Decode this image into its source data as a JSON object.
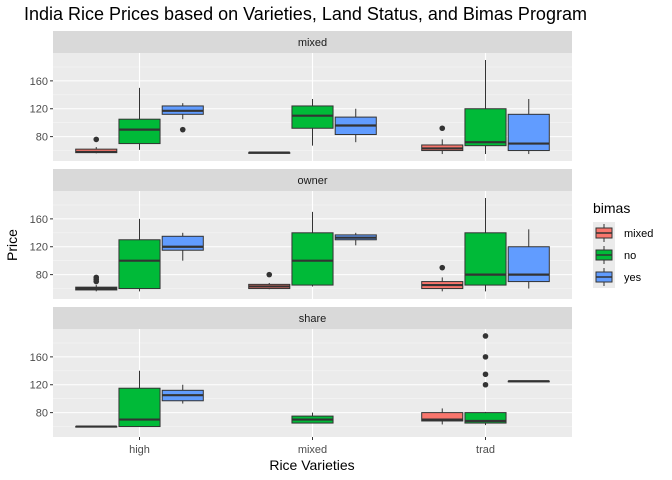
{
  "chart_data": {
    "type": "boxplot",
    "title": "India Rice Prices based on Varieties, Land Status, and Bimas Program",
    "xlabel": "Rice Varieties",
    "ylabel": "Price",
    "categories": [
      "high",
      "mixed",
      "trad"
    ],
    "ylim": [
      45,
      200
    ],
    "yticks": [
      80,
      120,
      160
    ],
    "legend": {
      "title": "bimas",
      "position": "right",
      "items": [
        {
          "name": "mixed",
          "color": "#F8766D"
        },
        {
          "name": "no",
          "color": "#00BA38"
        },
        {
          "name": "yes",
          "color": "#619CFF"
        }
      ]
    },
    "grid": true,
    "facets": [
      {
        "label": "mixed",
        "boxes": [
          {
            "category": "high",
            "group": "mixed",
            "min": 56,
            "q1": 57,
            "median": 58,
            "q3": 62,
            "max": 65,
            "outliers": [
              76
            ]
          },
          {
            "category": "high",
            "group": "no",
            "min": 61,
            "q1": 70,
            "median": 90,
            "q3": 105,
            "max": 150,
            "outliers": []
          },
          {
            "category": "high",
            "group": "yes",
            "min": 105,
            "q1": 112,
            "median": 117,
            "q3": 124,
            "max": 128,
            "outliers": [
              90
            ]
          },
          {
            "category": "mixed",
            "group": "mixed",
            "min": 56,
            "q1": 56,
            "median": 57,
            "q3": 57,
            "max": 57,
            "outliers": []
          },
          {
            "category": "mixed",
            "group": "no",
            "min": 67,
            "q1": 92,
            "median": 110,
            "q3": 124,
            "max": 134,
            "outliers": []
          },
          {
            "category": "mixed",
            "group": "yes",
            "min": 72,
            "q1": 83,
            "median": 96,
            "q3": 108,
            "max": 120,
            "outliers": []
          },
          {
            "category": "trad",
            "group": "mixed",
            "min": 55,
            "q1": 60,
            "median": 63,
            "q3": 68,
            "max": 76,
            "outliers": [
              92
            ]
          },
          {
            "category": "trad",
            "group": "no",
            "min": 55,
            "q1": 67,
            "median": 72,
            "q3": 120,
            "max": 190,
            "outliers": []
          },
          {
            "category": "trad",
            "group": "yes",
            "min": 55,
            "q1": 60,
            "median": 70,
            "q3": 112,
            "max": 134,
            "outliers": []
          }
        ]
      },
      {
        "label": "owner",
        "boxes": [
          {
            "category": "high",
            "group": "mixed",
            "min": 56,
            "q1": 58,
            "median": 60,
            "q3": 62,
            "max": 65,
            "outliers": [
              70,
              73,
              76
            ]
          },
          {
            "category": "high",
            "group": "no",
            "min": 56,
            "q1": 60,
            "median": 100,
            "q3": 130,
            "max": 160,
            "outliers": []
          },
          {
            "category": "high",
            "group": "yes",
            "min": 100,
            "q1": 115,
            "median": 120,
            "q3": 135,
            "max": 140,
            "outliers": []
          },
          {
            "category": "mixed",
            "group": "mixed",
            "min": 59,
            "q1": 60,
            "median": 63,
            "q3": 66,
            "max": 68,
            "outliers": [
              80
            ]
          },
          {
            "category": "mixed",
            "group": "no",
            "min": 63,
            "q1": 65,
            "median": 100,
            "q3": 140,
            "max": 170,
            "outliers": []
          },
          {
            "category": "mixed",
            "group": "yes",
            "min": 122,
            "q1": 130,
            "median": 133,
            "q3": 137,
            "max": 140,
            "outliers": []
          },
          {
            "category": "trad",
            "group": "mixed",
            "min": 56,
            "q1": 60,
            "median": 65,
            "q3": 70,
            "max": 76,
            "outliers": [
              90
            ]
          },
          {
            "category": "trad",
            "group": "no",
            "min": 56,
            "q1": 65,
            "median": 80,
            "q3": 140,
            "max": 190,
            "outliers": []
          },
          {
            "category": "trad",
            "group": "yes",
            "min": 60,
            "q1": 70,
            "median": 80,
            "q3": 120,
            "max": 145,
            "outliers": []
          }
        ]
      },
      {
        "label": "share",
        "boxes": [
          {
            "category": "high",
            "group": "mixed",
            "min": 60,
            "q1": 60,
            "median": 60,
            "q3": 60,
            "max": 60,
            "outliers": []
          },
          {
            "category": "high",
            "group": "no",
            "min": 60,
            "q1": 60,
            "median": 70,
            "q3": 115,
            "max": 140,
            "outliers": []
          },
          {
            "category": "high",
            "group": "yes",
            "min": 93,
            "q1": 97,
            "median": 105,
            "q3": 112,
            "max": 120,
            "outliers": []
          },
          {
            "category": "mixed",
            "group": "no",
            "min": 65,
            "q1": 65,
            "median": 70,
            "q3": 75,
            "max": 80,
            "outliers": []
          },
          {
            "category": "trad",
            "group": "mixed",
            "min": 63,
            "q1": 68,
            "median": 70,
            "q3": 80,
            "max": 86,
            "outliers": []
          },
          {
            "category": "trad",
            "group": "no",
            "min": 62,
            "q1": 65,
            "median": 68,
            "q3": 80,
            "max": 81,
            "outliers": [
              120,
              135,
              160,
              190
            ]
          },
          {
            "category": "trad",
            "group": "yes",
            "min": 125,
            "q1": 125,
            "median": 125,
            "q3": 125,
            "max": 125,
            "outliers": []
          }
        ]
      }
    ]
  }
}
